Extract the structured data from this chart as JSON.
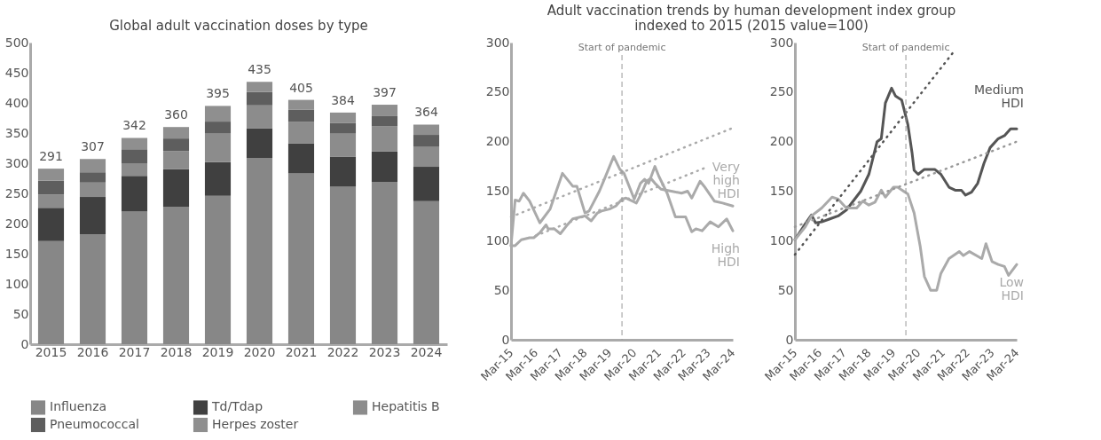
{
  "chart_data": [
    {
      "type": "bar",
      "title": "Global adult vaccination doses by type",
      "stacked": true,
      "legend": "bottom",
      "categories": [
        "2015",
        "2016",
        "2017",
        "2018",
        "2019",
        "2020",
        "2021",
        "2022",
        "2023",
        "2024"
      ],
      "series": [
        {
          "name": "Influenza",
          "color": "#878787",
          "values": [
            171,
            182,
            220,
            228,
            246,
            309,
            283,
            261,
            269,
            237
          ]
        },
        {
          "name": "Td/Tdap",
          "color": "#404040",
          "values": [
            55,
            62,
            59,
            62,
            56,
            49,
            50,
            50,
            51,
            57
          ]
        },
        {
          "name": "Hepatitis B",
          "color": "#8c8c8c",
          "values": [
            22,
            24,
            21,
            30,
            47,
            38,
            36,
            38,
            41,
            33
          ]
        },
        {
          "name": "Pneumococcal",
          "color": "#5e5e5e",
          "values": [
            23,
            17,
            23,
            21,
            20,
            22,
            20,
            18,
            17,
            20
          ]
        },
        {
          "name": "Herpes zoster",
          "color": "#8f8f8f",
          "values": [
            20,
            22,
            19,
            19,
            26,
            17,
            16,
            17,
            19,
            17
          ]
        }
      ],
      "totals": [
        "291",
        "307",
        "342",
        "360",
        "395",
        "435",
        "405",
        "384",
        "397",
        "364"
      ],
      "ylim": [
        0,
        500
      ],
      "yticks": [
        0,
        50,
        100,
        150,
        200,
        250,
        300,
        350,
        400,
        450,
        500
      ]
    },
    {
      "type": "line",
      "title": "Adult vaccination trends by human development index group",
      "subtitle": "indexed to 2015 (2015 value=100)",
      "xlim": [
        "2015-03",
        "2024-03"
      ],
      "xticks": [
        {
          "value": "2015-03",
          "label": "Mar-15"
        },
        {
          "value": "2016-03",
          "label": "Mar-16"
        },
        {
          "value": "2017-03",
          "label": "Mar-17"
        },
        {
          "value": "2018-03",
          "label": "Mar-18"
        },
        {
          "value": "2019-03",
          "label": "Mar-19"
        },
        {
          "value": "2020-03",
          "label": "Mar-20"
        },
        {
          "value": "2021-03",
          "label": "Mar-21"
        },
        {
          "value": "2022-03",
          "label": "Mar-22"
        },
        {
          "value": "2023-03",
          "label": "Mar-23"
        },
        {
          "value": "2024-03",
          "label": "Mar-24"
        }
      ],
      "ylim": [
        0,
        300
      ],
      "yticks": [
        0,
        50,
        100,
        150,
        200,
        250,
        300
      ],
      "ref_lines": [
        {
          "axis": "x",
          "value": "2019-09",
          "label": "Start of pandemic",
          "line_style": "dashed",
          "color": "#999999"
        }
      ],
      "series": [
        {
          "name": "Very high HDI",
          "color": "#aaaaaa",
          "x": [
            "2015-03",
            "2015-05",
            "2015-08",
            "2015-12",
            "2016-02",
            "2016-05",
            "2016-08",
            "2016-09",
            "2016-12",
            "2017-03",
            "2017-06",
            "2017-09",
            "2018-01",
            "2018-03",
            "2018-06",
            "2018-09",
            "2018-11",
            "2019-03",
            "2019-06",
            "2019-09",
            "2019-11",
            "2020-02",
            "2020-04",
            "2020-07",
            "2020-09",
            "2020-11",
            "2021-01",
            "2021-04",
            "2021-09",
            "2022-02",
            "2022-05",
            "2022-07",
            "2022-11",
            "2023-01",
            "2023-06",
            "2023-10",
            "2024-03"
          ],
          "values": [
            95,
            95,
            101,
            103,
            103,
            108,
            116,
            112,
            112,
            107,
            115,
            122,
            124,
            125,
            120,
            128,
            130,
            132,
            135,
            142,
            143,
            140,
            138,
            150,
            160,
            163,
            158,
            152,
            150,
            148,
            150,
            143,
            160,
            155,
            140,
            138,
            135
          ]
        },
        {
          "name": "High HDI",
          "color": "#aaaaaa",
          "x": [
            "2015-03",
            "2015-05",
            "2015-07",
            "2015-09",
            "2015-12",
            "2016-05",
            "2016-10",
            "2017-04",
            "2017-09",
            "2017-11",
            "2018-03",
            "2018-05",
            "2018-10",
            "2018-12",
            "2019-05",
            "2019-08",
            "2019-10",
            "2020-03",
            "2020-06",
            "2020-08",
            "2020-10",
            "2021-01",
            "2021-03",
            "2021-07",
            "2021-11",
            "2022-04",
            "2022-07",
            "2022-09",
            "2022-12",
            "2023-04",
            "2023-08",
            "2023-12",
            "2024-03"
          ],
          "values": [
            95,
            141,
            140,
            148,
            140,
            118,
            132,
            168,
            155,
            155,
            128,
            130,
            150,
            160,
            185,
            172,
            168,
            142,
            158,
            162,
            158,
            175,
            165,
            148,
            124,
            124,
            109,
            112,
            110,
            119,
            114,
            122,
            110
          ]
        },
        {
          "type": "line",
          "line_style": "dotted",
          "color": "#aaaaaa",
          "x": [
            "2015-03",
            "2024-02"
          ],
          "values": [
            124,
            213
          ]
        },
        {
          "type": "line",
          "line_style": "dotted",
          "color": "#aaaaaa",
          "x": [
            "2016-03",
            "2023-02"
          ],
          "values": [
            105,
            174
          ]
        }
      ]
    },
    {
      "type": "line",
      "xlim": [
        "2015-03",
        "2024-03"
      ],
      "xticks": [
        {
          "value": "2015-03",
          "label": "Mar-15"
        },
        {
          "value": "2016-03",
          "label": "Mar-16"
        },
        {
          "value": "2017-03",
          "label": "Mar-17"
        },
        {
          "value": "2018-03",
          "label": "Mar-18"
        },
        {
          "value": "2019-03",
          "label": "Mar-19"
        },
        {
          "value": "2020-03",
          "label": "Mar-20"
        },
        {
          "value": "2021-03",
          "label": "Mar-21"
        },
        {
          "value": "2022-03",
          "label": "Mar-22"
        },
        {
          "value": "2023-03",
          "label": "Mar-23"
        },
        {
          "value": "2024-03",
          "label": "Mar-24"
        }
      ],
      "ylim": [
        0,
        300
      ],
      "yticks": [
        0,
        50,
        100,
        150,
        200,
        250,
        300
      ],
      "ref_lines": [
        {
          "axis": "x",
          "value": "2019-09",
          "label": "Start of pandemic",
          "line_style": "dashed",
          "color": "#999999"
        }
      ],
      "series": [
        {
          "name": "Medium HDI",
          "color": "#555555",
          "x": [
            "2015-03",
            "2015-08",
            "2015-11",
            "2016-01",
            "2016-04",
            "2016-08",
            "2016-12",
            "2017-04",
            "2017-07",
            "2017-11",
            "2018-03",
            "2018-07",
            "2018-09",
            "2018-11",
            "2019-02",
            "2019-04",
            "2019-07",
            "2019-10",
            "2019-12",
            "2020-01",
            "2020-03",
            "2020-06",
            "2020-11",
            "2021-02",
            "2021-06",
            "2021-09",
            "2021-12",
            "2022-02",
            "2022-05",
            "2022-08",
            "2022-11",
            "2023-02",
            "2023-06",
            "2023-09",
            "2023-12",
            "2024-03"
          ],
          "values": [
            101,
            117,
            126,
            118,
            119,
            122,
            125,
            131,
            139,
            150,
            167,
            200,
            203,
            239,
            254,
            246,
            242,
            217,
            189,
            171,
            167,
            172,
            172,
            167,
            154,
            151,
            151,
            146,
            149,
            158,
            178,
            194,
            203,
            206,
            213,
            213
          ]
        },
        {
          "name": "Low HDI",
          "color": "#aaaaaa",
          "x": [
            "2015-03",
            "2015-08",
            "2015-11",
            "2016-04",
            "2016-09",
            "2016-12",
            "2017-04",
            "2017-09",
            "2017-12",
            "2018-03",
            "2018-06",
            "2018-09",
            "2018-11",
            "2019-03",
            "2019-05",
            "2019-10",
            "2020-01",
            "2020-04",
            "2020-06",
            "2020-09",
            "2020-12",
            "2021-02",
            "2021-06",
            "2021-11",
            "2022-01",
            "2022-04",
            "2022-09",
            "2022-10",
            "2022-12",
            "2023-03",
            "2023-06",
            "2023-09",
            "2023-11",
            "2024-03"
          ],
          "values": [
            101,
            114,
            125,
            133,
            144,
            142,
            133,
            133,
            140,
            136,
            139,
            151,
            144,
            154,
            154,
            147,
            128,
            94,
            64,
            50,
            50,
            67,
            82,
            89,
            85,
            89,
            83,
            82,
            97,
            79,
            76,
            74,
            65,
            76
          ]
        },
        {
          "type": "line",
          "line_style": "dotted",
          "color": "#555555",
          "x": [
            "2015-03",
            "2021-08"
          ],
          "values": [
            86,
            290
          ]
        },
        {
          "type": "line",
          "line_style": "dotted",
          "color": "#999999",
          "x": [
            "2015-03",
            "2024-03"
          ],
          "values": [
            114,
            200
          ]
        }
      ]
    }
  ]
}
